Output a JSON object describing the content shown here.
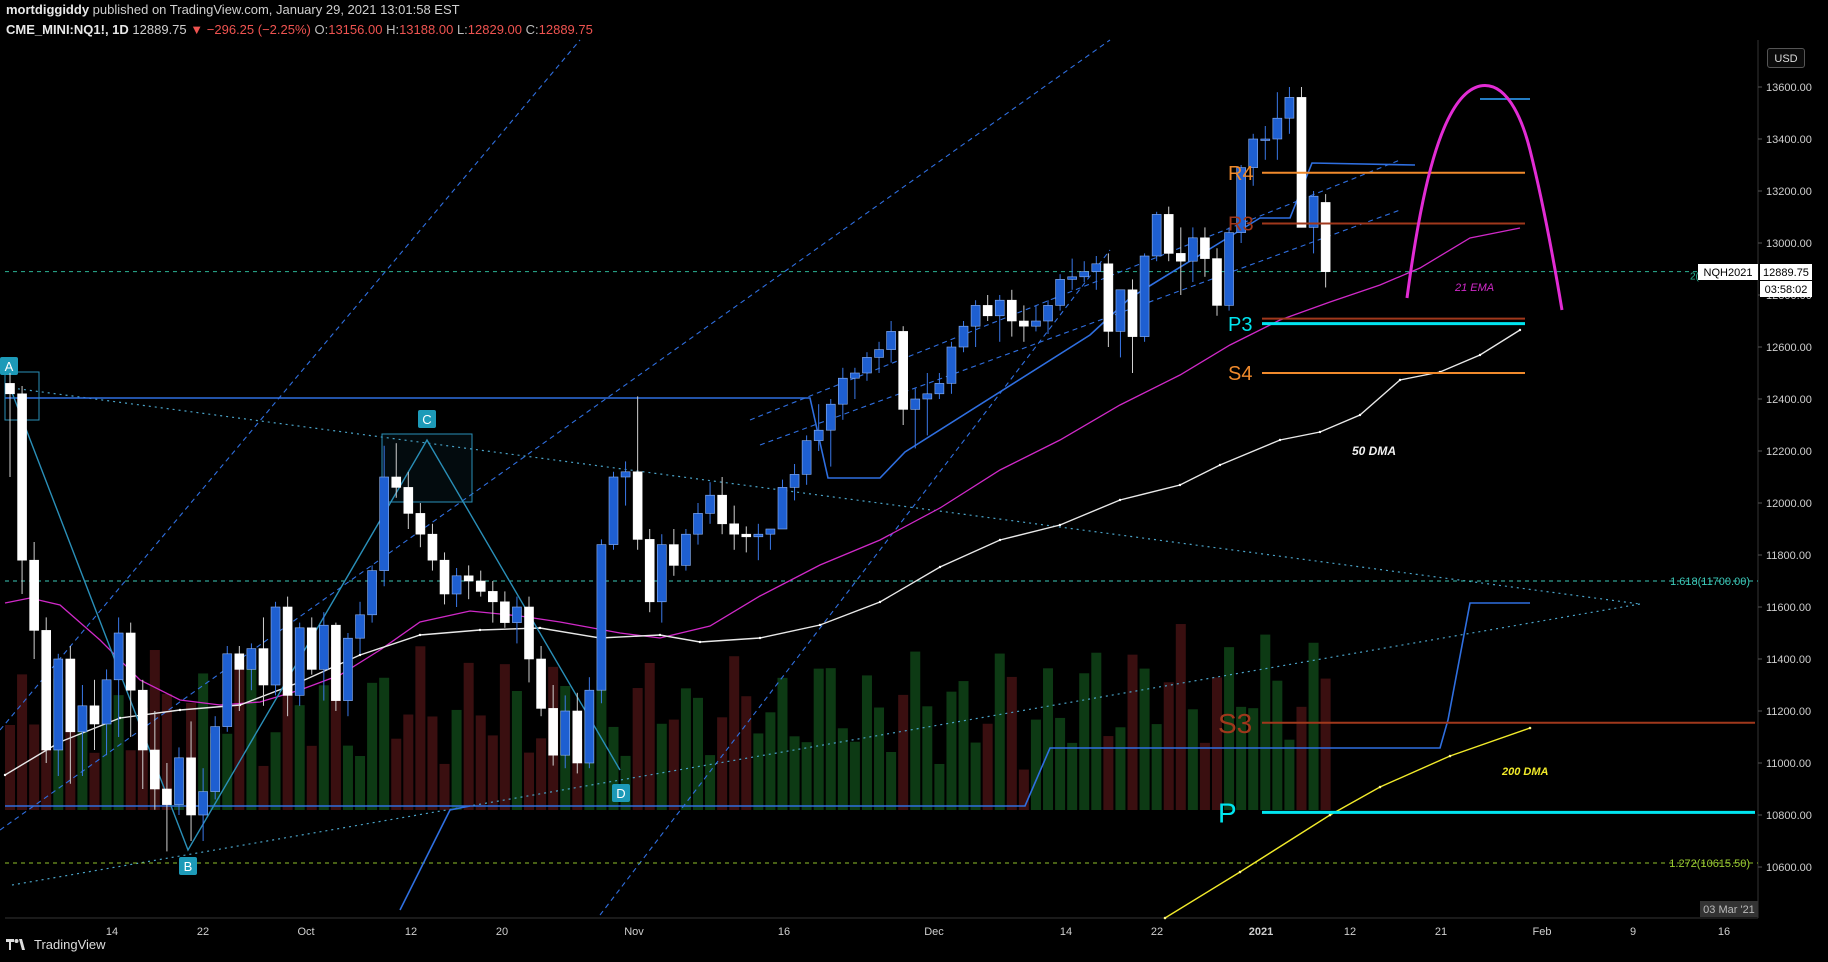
{
  "header": {
    "user": "mortdiggiddy",
    "published": "published on TradingView.com, January 29, 2021 13:01:58 EST",
    "symbol": "CME_MINI:NQ1!, 1D",
    "last": "12889.75",
    "change": "−296.25 (−2.25%)",
    "ohlc": {
      "o_label": "O:",
      "o": "13156.00",
      "h_label": "H:",
      "h": "13188.00",
      "l_label": "L:",
      "l": "12829.00",
      "c_label": "C:",
      "c": "12889.75"
    }
  },
  "currency": "USD",
  "brand": "TradingView",
  "price_tag": {
    "symbol": "NQH2021",
    "price": "12889.75",
    "countdown": "03:58:02"
  },
  "colors": {
    "bg": "#000000",
    "up": "#1e5fd1",
    "down": "#ffffff",
    "ema21": "#d029c8",
    "dma50": "#e8e8e8",
    "dma200": "#f1ea2a",
    "pivot_p": "#00e5f0",
    "r4": "#f08a2c",
    "r3": "#a0381c",
    "s3": "#a0381c",
    "s4": "#f08a2c",
    "vol_up": "#0d3a14",
    "vol_down": "#3a0f10",
    "channel": "#2f6fe0",
    "band": "#2f6fe0"
  },
  "chart_data": {
    "type": "candlestick",
    "ylim": [
      10400,
      13800
    ],
    "y_ticks": [
      "13600.00",
      "13400.00",
      "13200.00",
      "13000.00",
      "12800.00",
      "12600.00",
      "12400.00",
      "12200.00",
      "12000.00",
      "11800.00",
      "11600.00",
      "11400.00",
      "11200.00",
      "11000.00",
      "10800.00",
      "10600.00"
    ],
    "x_ticks": [
      "14",
      "22",
      "Oct",
      "12",
      "20",
      "Nov",
      "16",
      "Dec",
      "14",
      "22",
      "2021",
      "12",
      "21",
      "Feb",
      "9",
      "16"
    ],
    "x_badge": "03 Mar '21",
    "candles": [
      [
        12460,
        12500,
        12100,
        12420
      ],
      [
        12420,
        12450,
        11650,
        11780
      ],
      [
        11780,
        11850,
        11400,
        11510
      ],
      [
        11510,
        11560,
        11000,
        11050
      ],
      [
        11050,
        11420,
        10950,
        11400
      ],
      [
        11400,
        11450,
        10920,
        11120
      ],
      [
        11120,
        11300,
        10950,
        11220
      ],
      [
        11220,
        11320,
        11050,
        11150
      ],
      [
        11150,
        11360,
        11030,
        11320
      ],
      [
        11320,
        11560,
        11100,
        11500
      ],
      [
        11500,
        11540,
        11100,
        11280
      ],
      [
        11280,
        11320,
        10900,
        11050
      ],
      [
        11050,
        11200,
        10820,
        10900
      ],
      [
        10900,
        11000,
        10660,
        10840
      ],
      [
        10840,
        11060,
        10800,
        11020
      ],
      [
        11020,
        11160,
        10700,
        10800
      ],
      [
        10800,
        10980,
        10700,
        10890
      ],
      [
        10890,
        11180,
        10860,
        11140
      ],
      [
        11140,
        11450,
        11120,
        11420
      ],
      [
        11420,
        11450,
        11200,
        11360
      ],
      [
        11360,
        11460,
        11280,
        11440
      ],
      [
        11440,
        11560,
        11220,
        11300
      ],
      [
        11300,
        11620,
        11260,
        11600
      ],
      [
        11600,
        11640,
        11180,
        11260
      ],
      [
        11260,
        11540,
        11220,
        11520
      ],
      [
        11520,
        11560,
        11340,
        11360
      ],
      [
        11360,
        11580,
        11240,
        11530
      ],
      [
        11530,
        11540,
        11200,
        11240
      ],
      [
        11240,
        11500,
        11180,
        11480
      ],
      [
        11480,
        11620,
        11420,
        11570
      ],
      [
        11570,
        11760,
        11540,
        11740
      ],
      [
        11740,
        12220,
        11680,
        12100
      ],
      [
        12100,
        12230,
        12020,
        12060
      ],
      [
        12060,
        12120,
        11900,
        11960
      ],
      [
        11960,
        12000,
        11830,
        11880
      ],
      [
        11880,
        11920,
        11740,
        11780
      ],
      [
        11780,
        11810,
        11610,
        11650
      ],
      [
        11650,
        11750,
        11600,
        11720
      ],
      [
        11720,
        11760,
        11630,
        11700
      ],
      [
        11700,
        11740,
        11640,
        11660
      ],
      [
        11660,
        11700,
        11540,
        11620
      ],
      [
        11620,
        11660,
        11520,
        11540
      ],
      [
        11540,
        11640,
        11460,
        11600
      ],
      [
        11600,
        11640,
        11310,
        11400
      ],
      [
        11400,
        11450,
        11180,
        11210
      ],
      [
        11210,
        11300,
        10990,
        11030
      ],
      [
        11030,
        11260,
        10980,
        11200
      ],
      [
        11200,
        11270,
        10960,
        11000
      ],
      [
        11000,
        11330,
        10980,
        11280
      ],
      [
        11280,
        11860,
        11230,
        11840
      ],
      [
        11840,
        12120,
        11820,
        12100
      ],
      [
        12100,
        12160,
        11990,
        12120
      ],
      [
        12120,
        12410,
        11820,
        11860
      ],
      [
        11860,
        11900,
        11580,
        11620
      ],
      [
        11620,
        11880,
        11540,
        11840
      ],
      [
        11840,
        11900,
        11720,
        11760
      ],
      [
        11760,
        11900,
        11740,
        11880
      ],
      [
        11880,
        12000,
        11840,
        11960
      ],
      [
        11960,
        12080,
        11920,
        12030
      ],
      [
        12030,
        12100,
        11880,
        11920
      ],
      [
        11920,
        11990,
        11820,
        11880
      ],
      [
        11880,
        11910,
        11810,
        11870
      ],
      [
        11870,
        11920,
        11780,
        11880
      ],
      [
        11880,
        11900,
        11820,
        11900
      ],
      [
        11900,
        12090,
        11900,
        12060
      ],
      [
        12060,
        12150,
        12010,
        12110
      ],
      [
        12110,
        12260,
        12070,
        12240
      ],
      [
        12240,
        12380,
        12200,
        12280
      ],
      [
        12280,
        12400,
        12140,
        12380
      ],
      [
        12380,
        12520,
        12320,
        12480
      ],
      [
        12480,
        12520,
        12400,
        12500
      ],
      [
        12500,
        12580,
        12470,
        12560
      ],
      [
        12560,
        12620,
        12500,
        12590
      ],
      [
        12590,
        12700,
        12540,
        12660
      ],
      [
        12660,
        12680,
        12300,
        12360
      ],
      [
        12360,
        12440,
        12210,
        12400
      ],
      [
        12400,
        12500,
        12260,
        12420
      ],
      [
        12420,
        12500,
        12400,
        12460
      ],
      [
        12460,
        12620,
        12420,
        12600
      ],
      [
        12600,
        12700,
        12580,
        12680
      ],
      [
        12680,
        12780,
        12600,
        12760
      ],
      [
        12760,
        12800,
        12700,
        12720
      ],
      [
        12720,
        12800,
        12620,
        12780
      ],
      [
        12780,
        12820,
        12640,
        12700
      ],
      [
        12700,
        12760,
        12620,
        12680
      ],
      [
        12680,
        12760,
        12660,
        12700
      ],
      [
        12700,
        12780,
        12650,
        12760
      ],
      [
        12760,
        12880,
        12740,
        12860
      ],
      [
        12860,
        12940,
        12820,
        12870
      ],
      [
        12870,
        12930,
        12850,
        12890
      ],
      [
        12890,
        12950,
        12820,
        12920
      ],
      [
        12920,
        12960,
        12600,
        12660
      ],
      [
        12660,
        12800,
        12560,
        12820
      ],
      [
        12820,
        12860,
        12500,
        12640
      ],
      [
        12640,
        12960,
        12620,
        12950
      ],
      [
        12950,
        13120,
        12930,
        13110
      ],
      [
        13110,
        13140,
        12930,
        12960
      ],
      [
        12960,
        13060,
        12800,
        12930
      ],
      [
        12930,
        13060,
        12850,
        13020
      ],
      [
        13020,
        13060,
        12870,
        12940
      ],
      [
        12940,
        12980,
        12720,
        12760
      ],
      [
        12760,
        13060,
        12740,
        13040
      ],
      [
        13040,
        13300,
        13000,
        13290
      ],
      [
        13290,
        13420,
        13220,
        13400
      ],
      [
        13400,
        13450,
        13320,
        13400
      ],
      [
        13400,
        13580,
        13320,
        13480
      ],
      [
        13480,
        13600,
        13420,
        13560
      ],
      [
        13560,
        13600,
        13060,
        13060
      ],
      [
        13060,
        13200,
        12960,
        13180
      ],
      [
        13156,
        13188,
        12829,
        12889.75
      ]
    ],
    "indicators": {
      "ema21_label": "21 EMA",
      "dma50_label": "50 DMA",
      "dma200_label": "200 DMA"
    },
    "levels": [
      {
        "label": "R4",
        "value": 13270
      },
      {
        "label": "R3",
        "value": 13075
      },
      {
        "label": "P3",
        "value": 12690
      },
      {
        "label": "S4",
        "value": 12500
      },
      {
        "label": "S3",
        "value": 11155
      },
      {
        "label": "P",
        "value": 10810
      }
    ],
    "fib": [
      {
        "label": "1.618(11700.00)",
        "value": 11700
      },
      {
        "label": "1.272(10615.50)",
        "value": 10615.5
      }
    ],
    "pattern_points": [
      "A",
      "B",
      "C",
      "D"
    ],
    "marker_2": "2("
  }
}
